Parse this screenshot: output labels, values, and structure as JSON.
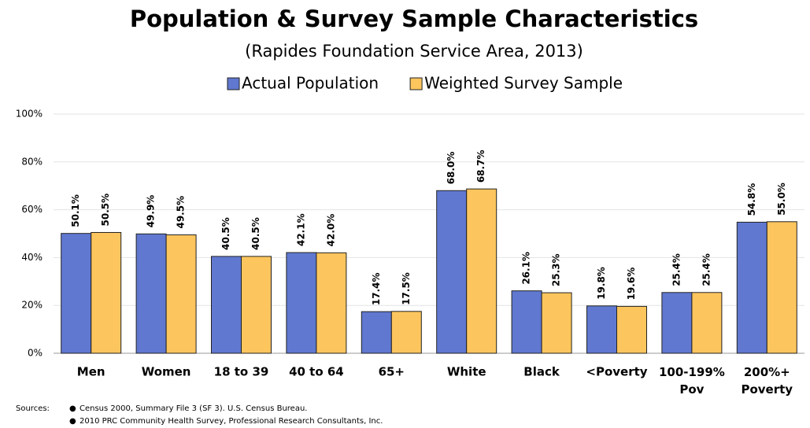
{
  "chart_data": {
    "type": "bar",
    "title": "Population & Survey Sample Characteristics",
    "subtitle": "(Rapides Foundation Service Area, 2013)",
    "categories": [
      "Men",
      "Women",
      "18 to 39",
      "40 to 64",
      "65+",
      "White",
      "Black",
      "<Poverty",
      "100-199%\nPov",
      "200%+\nPoverty"
    ],
    "series": [
      {
        "name": "Actual Population",
        "color": "#6078d0",
        "values": [
          50.1,
          49.9,
          40.5,
          42.1,
          17.4,
          68.0,
          26.1,
          19.8,
          25.4,
          54.8
        ],
        "value_labels": [
          "50.1%",
          "49.9%",
          "40.5%",
          "42.1%",
          "17.4%",
          "68.0%",
          "26.1%",
          "19.8%",
          "25.4%",
          "54.8%"
        ]
      },
      {
        "name": "Weighted Survey Sample",
        "color": "#fcc55e",
        "values": [
          50.5,
          49.5,
          40.5,
          42.0,
          17.5,
          68.7,
          25.3,
          19.6,
          25.4,
          55.0
        ],
        "value_labels": [
          "50.5%",
          "49.5%",
          "40.5%",
          "42.0%",
          "17.5%",
          "68.7%",
          "25.3%",
          "19.6%",
          "25.4%",
          "55.0%"
        ]
      }
    ],
    "ylim": [
      0,
      100
    ],
    "yticks": [
      {
        "value": 0,
        "label": "0%"
      },
      {
        "value": 20,
        "label": "20%"
      },
      {
        "value": 40,
        "label": "40%"
      },
      {
        "value": 60,
        "label": "60%"
      },
      {
        "value": 80,
        "label": "80%"
      },
      {
        "value": 100,
        "label": "100%"
      }
    ],
    "grid": true,
    "legend": "top",
    "sources_label": "Sources:",
    "sources": [
      "Census 2000, Summary File 3 (SF 3).  U.S. Census Bureau.",
      "2010 PRC Community Health Survey, Professional Research Consultants, Inc."
    ]
  }
}
